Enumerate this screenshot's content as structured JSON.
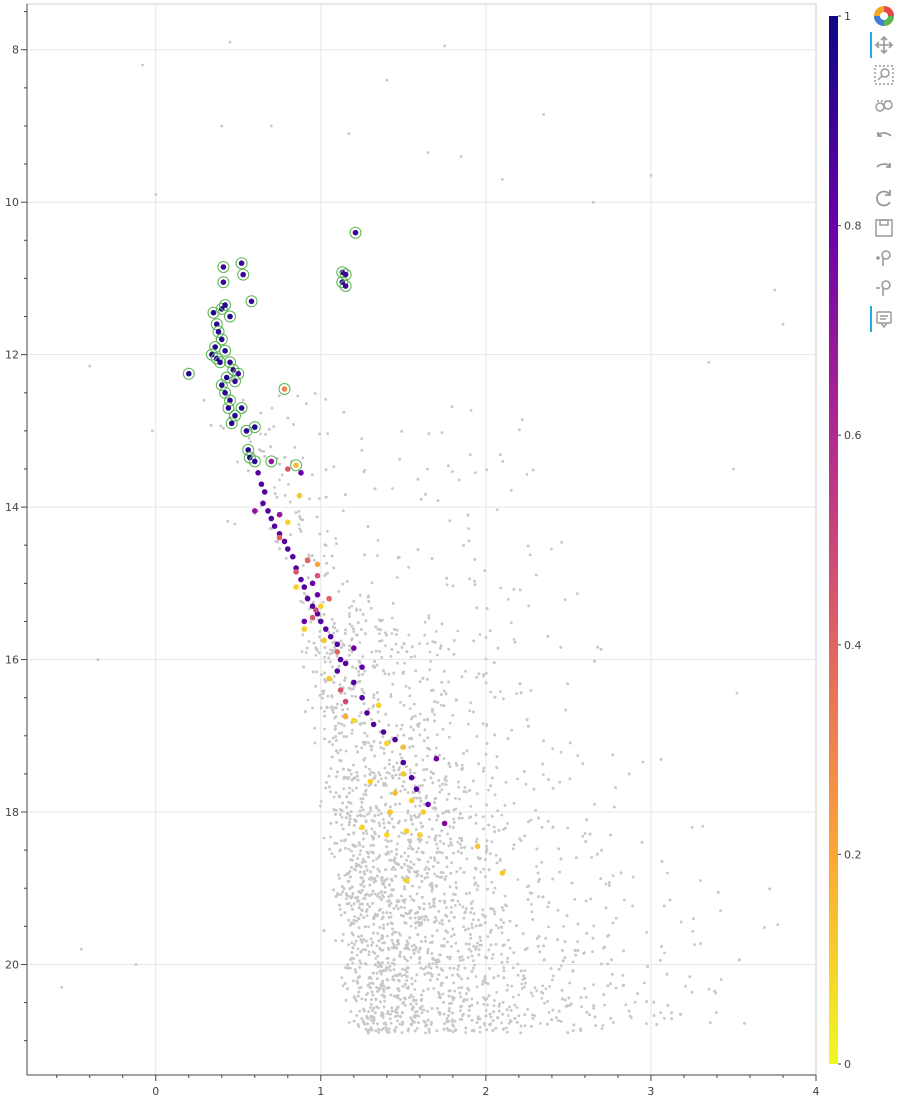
{
  "chart_data": {
    "type": "scatter",
    "title": "",
    "xlabel": "",
    "ylabel": "",
    "xlim": [
      -0.78,
      4.0
    ],
    "ylim": [
      21.45,
      7.4
    ],
    "y_inverted": true,
    "grid": true,
    "x_ticks": [
      0,
      1,
      2,
      3,
      4
    ],
    "y_ticks": [
      8,
      10,
      12,
      14,
      16,
      18,
      20
    ],
    "colorbar": {
      "palette": "plasma-reversed",
      "range": [
        0,
        1
      ],
      "ticks": [
        0,
        0.2,
        0.4,
        0.6,
        0.8,
        1
      ],
      "tick_labels": [
        "0",
        "0.2",
        "0.4",
        "0.6",
        "0.8",
        "1"
      ]
    },
    "background_field": {
      "color": "#c8c8c8",
      "approx_count": 12000,
      "sparse_points": [
        [
          -0.08,
          8.2
        ],
        [
          0.45,
          7.9
        ],
        [
          1.75,
          7.95
        ],
        [
          1.4,
          8.4
        ],
        [
          2.35,
          8.85
        ],
        [
          0.4,
          9.0
        ],
        [
          0.7,
          9.0
        ],
        [
          1.17,
          9.1
        ],
        [
          1.65,
          9.35
        ],
        [
          1.85,
          9.4
        ],
        [
          0.0,
          9.9
        ],
        [
          2.1,
          9.7
        ],
        [
          3.0,
          9.65
        ],
        [
          2.65,
          10.0
        ],
        [
          3.75,
          11.15
        ],
        [
          3.8,
          11.6
        ],
        [
          -0.4,
          12.15
        ],
        [
          -0.02,
          13.0
        ],
        [
          3.35,
          12.1
        ],
        [
          3.5,
          13.5
        ],
        [
          -0.35,
          16.0
        ],
        [
          -0.45,
          19.8
        ],
        [
          -0.57,
          20.3
        ],
        [
          -0.12,
          20.0
        ],
        [
          3.3,
          18.9
        ],
        [
          3.1,
          18.8
        ],
        [
          3.25,
          18.2
        ]
      ]
    },
    "series": [
      {
        "points": [
          [
            0.2,
            12.25
          ],
          [
            0.35,
            11.45
          ],
          [
            0.4,
            11.4
          ],
          [
            0.42,
            11.35
          ],
          [
            0.45,
            11.5
          ],
          [
            0.37,
            11.6
          ],
          [
            0.38,
            11.7
          ],
          [
            0.36,
            11.9
          ],
          [
            0.34,
            12.0
          ],
          [
            0.37,
            12.05
          ],
          [
            0.39,
            12.1
          ],
          [
            0.4,
            11.8
          ],
          [
            0.42,
            11.95
          ],
          [
            0.45,
            12.1
          ],
          [
            0.47,
            12.2
          ],
          [
            0.43,
            12.3
          ],
          [
            0.4,
            12.4
          ],
          [
            0.42,
            12.5
          ],
          [
            0.45,
            12.6
          ],
          [
            0.44,
            12.7
          ],
          [
            0.48,
            12.8
          ],
          [
            0.46,
            12.9
          ],
          [
            0.52,
            12.7
          ],
          [
            0.55,
            13.0
          ],
          [
            0.6,
            12.95
          ],
          [
            0.56,
            13.25
          ],
          [
            0.57,
            13.35
          ],
          [
            0.6,
            13.4
          ],
          [
            0.41,
            10.85
          ],
          [
            0.52,
            10.8
          ],
          [
            0.53,
            10.95
          ],
          [
            0.41,
            11.05
          ],
          [
            0.58,
            11.3
          ],
          [
            1.13,
            10.92
          ],
          [
            1.15,
            10.95
          ],
          [
            1.13,
            11.05
          ],
          [
            1.15,
            11.1
          ],
          [
            1.21,
            10.4
          ],
          [
            0.78,
            12.45
          ],
          [
            0.7,
            13.4
          ],
          [
            0.85,
            13.45
          ],
          [
            0.5,
            12.25
          ],
          [
            0.48,
            12.35
          ]
        ],
        "values": [
          0.95,
          0.95,
          0.95,
          0.95,
          0.95,
          0.95,
          0.95,
          0.95,
          0.95,
          0.95,
          0.95,
          0.95,
          0.95,
          0.95,
          0.95,
          0.95,
          0.95,
          0.95,
          0.95,
          0.95,
          0.95,
          0.95,
          0.95,
          0.95,
          0.95,
          0.95,
          0.95,
          0.95,
          0.9,
          0.9,
          0.9,
          0.9,
          0.9,
          0.9,
          0.9,
          0.9,
          0.9,
          0.9,
          0.3,
          0.7,
          0.15,
          0.9,
          0.9
        ],
        "selected": true
      },
      {
        "points": [
          [
            0.62,
            13.55
          ],
          [
            0.64,
            13.7
          ],
          [
            0.66,
            13.8
          ],
          [
            0.65,
            13.95
          ],
          [
            0.68,
            14.05
          ],
          [
            0.7,
            14.15
          ],
          [
            0.72,
            14.25
          ],
          [
            0.75,
            14.35
          ],
          [
            0.78,
            14.45
          ],
          [
            0.8,
            14.55
          ],
          [
            0.83,
            14.65
          ],
          [
            0.85,
            14.8
          ],
          [
            0.88,
            14.95
          ],
          [
            0.9,
            15.05
          ],
          [
            0.92,
            15.2
          ],
          [
            0.95,
            15.3
          ],
          [
            0.98,
            15.4
          ],
          [
            1.0,
            15.5
          ],
          [
            1.03,
            15.6
          ],
          [
            1.06,
            15.7
          ],
          [
            1.1,
            15.8
          ],
          [
            1.12,
            16.0
          ],
          [
            1.15,
            16.05
          ],
          [
            1.1,
            16.15
          ],
          [
            1.2,
            16.3
          ],
          [
            1.25,
            16.5
          ],
          [
            1.28,
            16.7
          ],
          [
            1.32,
            16.85
          ],
          [
            1.38,
            16.95
          ],
          [
            1.45,
            17.05
          ],
          [
            1.5,
            17.35
          ],
          [
            1.55,
            17.55
          ],
          [
            1.58,
            17.7
          ],
          [
            1.2,
            15.85
          ],
          [
            1.25,
            16.1
          ],
          [
            0.95,
            15.0
          ],
          [
            0.9,
            15.5
          ],
          [
            0.98,
            15.15
          ],
          [
            0.6,
            14.05
          ],
          [
            0.75,
            14.1
          ],
          [
            1.7,
            17.3
          ],
          [
            1.75,
            18.15
          ],
          [
            1.65,
            17.9
          ],
          [
            0.88,
            13.55
          ]
        ],
        "values": [
          0.85,
          0.85,
          0.85,
          0.85,
          0.85,
          0.85,
          0.85,
          0.85,
          0.85,
          0.85,
          0.85,
          0.85,
          0.85,
          0.85,
          0.85,
          0.85,
          0.85,
          0.85,
          0.85,
          0.85,
          0.85,
          0.85,
          0.85,
          0.85,
          0.85,
          0.85,
          0.85,
          0.85,
          0.85,
          0.85,
          0.85,
          0.85,
          0.85,
          0.8,
          0.8,
          0.8,
          0.8,
          0.8,
          0.7,
          0.7,
          0.8,
          0.75,
          0.8,
          0.8
        ]
      },
      {
        "points": [
          [
            0.8,
            13.5
          ],
          [
            0.75,
            14.4
          ],
          [
            0.85,
            14.85
          ],
          [
            0.92,
            14.7
          ],
          [
            0.98,
            14.9
          ],
          [
            1.05,
            15.2
          ],
          [
            0.97,
            15.35
          ],
          [
            1.1,
            15.9
          ],
          [
            1.12,
            16.4
          ],
          [
            1.15,
            16.55
          ],
          [
            0.95,
            15.45
          ]
        ],
        "values": [
          0.45,
          0.4,
          0.45,
          0.4,
          0.45,
          0.4,
          0.5,
          0.4,
          0.45,
          0.5,
          0.45
        ]
      },
      {
        "points": [
          [
            0.87,
            13.85
          ],
          [
            0.8,
            14.2
          ],
          [
            0.85,
            15.05
          ],
          [
            0.9,
            15.6
          ],
          [
            1.0,
            15.3
          ],
          [
            1.02,
            15.75
          ],
          [
            1.05,
            16.25
          ],
          [
            1.2,
            16.8
          ],
          [
            1.35,
            16.6
          ],
          [
            1.4,
            17.1
          ],
          [
            1.5,
            17.5
          ],
          [
            1.55,
            17.85
          ],
          [
            1.62,
            18.0
          ],
          [
            1.45,
            17.75
          ],
          [
            1.42,
            18.0
          ],
          [
            1.4,
            18.3
          ],
          [
            1.3,
            17.6
          ],
          [
            1.25,
            18.2
          ],
          [
            1.52,
            18.25
          ],
          [
            1.6,
            18.3
          ],
          [
            1.95,
            18.45
          ],
          [
            2.1,
            18.8
          ],
          [
            1.52,
            18.9
          ],
          [
            0.98,
            14.75
          ],
          [
            1.15,
            16.75
          ],
          [
            1.5,
            17.15
          ]
        ],
        "values": [
          0.12,
          0.1,
          0.1,
          0.1,
          0.1,
          0.12,
          0.12,
          0.08,
          0.1,
          0.1,
          0.12,
          0.1,
          0.1,
          0.15,
          0.12,
          0.08,
          0.1,
          0.1,
          0.1,
          0.1,
          0.12,
          0.12,
          0.1,
          0.2,
          0.18,
          0.15
        ]
      }
    ]
  },
  "toolbar": {
    "tools": [
      {
        "icon": "bokeh-logo-icon"
      },
      {
        "icon": "pan-icon"
      },
      {
        "icon": "box-zoom-icon"
      },
      {
        "icon": "box-select-icon"
      },
      {
        "icon": "undo-icon"
      },
      {
        "icon": "redo-icon"
      },
      {
        "icon": "reset-icon"
      },
      {
        "icon": "save-icon"
      },
      {
        "icon": "zoom-in-icon"
      },
      {
        "icon": "zoom-out-icon"
      },
      {
        "icon": "hover-icon"
      }
    ]
  }
}
